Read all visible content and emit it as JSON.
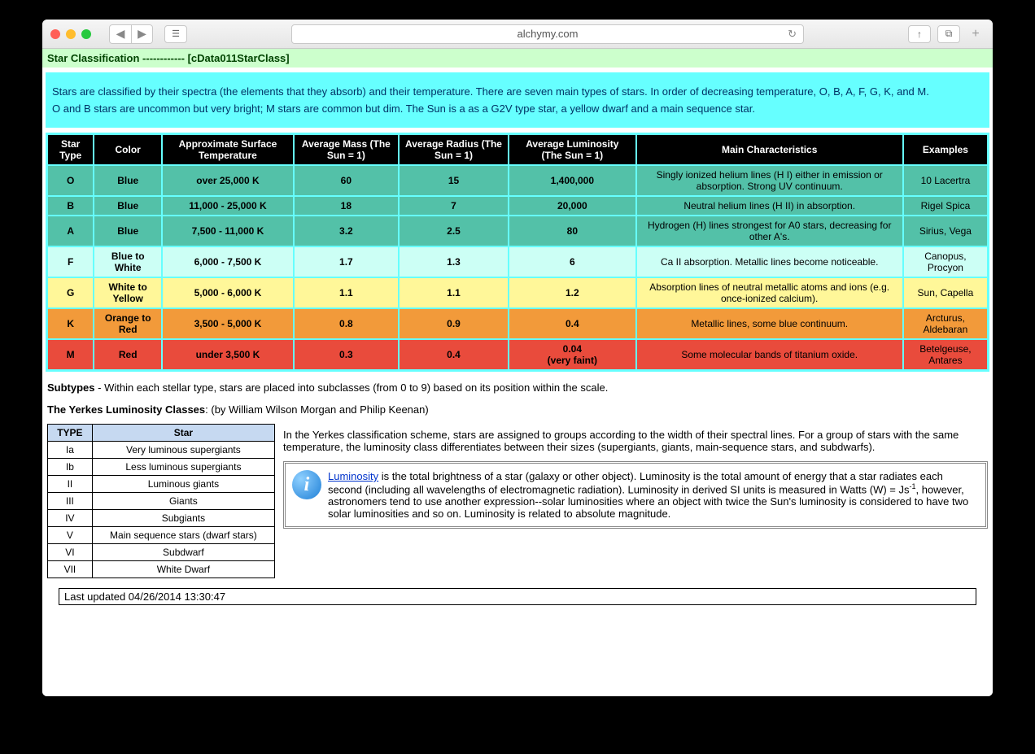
{
  "browser": {
    "url": "alchymy.com"
  },
  "header": {
    "title": "Star Classification ------------ [cData011StarClass]",
    "bg": "#ccffcc"
  },
  "intro": {
    "bg": "#66ffff",
    "p1": "Stars are classified by their spectra (the elements that they absorb) and their temperature. There are seven main types of stars. In order of decreasing temperature, O, B, A, F, G, K, and M.",
    "p2": "O and B stars are uncommon but very bright; M stars are common but dim. The Sun is a as a G2V type star, a yellow dwarf and a main sequence star."
  },
  "mainTable": {
    "borderColor": "#66ffff",
    "headerBg": "#000000",
    "columns": [
      "Star Type",
      "Color",
      "Approximate Surface Temperature",
      "Average Mass (The Sun = 1)",
      "Average Radius (The Sun = 1)",
      "Average Luminosity (The Sun = 1)",
      "Main Characteristics",
      "Examples"
    ],
    "rows": [
      {
        "bg": "#53c1a8",
        "cells": [
          "O",
          "Blue",
          "over 25,000 K",
          "60",
          "15",
          "1,400,000",
          "Singly ionized helium lines (H I) either in emission or absorption. Strong UV continuum.",
          "10 Lacertra"
        ]
      },
      {
        "bg": "#53c1a8",
        "cells": [
          "B",
          "Blue",
          "11,000 - 25,000 K",
          "18",
          "7",
          "20,000",
          "Neutral helium lines (H II) in absorption.",
          "Rigel Spica"
        ]
      },
      {
        "bg": "#53c1a8",
        "cells": [
          "A",
          "Blue",
          "7,500 - 11,000 K",
          "3.2",
          "2.5",
          "80",
          "Hydrogen (H) lines strongest for A0 stars, decreasing for other A's.",
          "Sirius, Vega"
        ]
      },
      {
        "bg": "#ccfff5",
        "cells": [
          "F",
          "Blue to White",
          "6,000 - 7,500 K",
          "1.7",
          "1.3",
          "6",
          "Ca II absorption. Metallic lines become noticeable.",
          "Canopus, Procyon"
        ]
      },
      {
        "bg": "#fff799",
        "cells": [
          "G",
          "White to Yellow",
          "5,000 - 6,000 K",
          "1.1",
          "1.1",
          "1.2",
          "Absorption lines of neutral metallic atoms and ions (e.g. once-ionized calcium).",
          "Sun, Capella"
        ]
      },
      {
        "bg": "#f29a3a",
        "cells": [
          "K",
          "Orange to Red",
          "3,500 - 5,000 K",
          "0.8",
          "0.9",
          "0.4",
          "Metallic lines, some blue continuum.",
          "Arcturus, Aldebaran"
        ]
      },
      {
        "bg": "#e94b3c",
        "cells": [
          "M",
          "Red",
          "under 3,500 K",
          "0.3",
          "0.4",
          "0.04\n(very faint)",
          "Some molecular bands of titanium oxide.",
          "Betelgeuse, Antares"
        ]
      }
    ]
  },
  "subtypes": {
    "label": "Subtypes",
    "text": " - Within each stellar type, stars are placed into subclasses (from 0 to 9) based on its position within the scale."
  },
  "yerkes": {
    "label": "The Yerkes Luminosity Classes",
    "credit": ": (by William Wilson Morgan and Philip Keenan)",
    "headerBg": "#c6d9f1",
    "table": {
      "columns": [
        "TYPE",
        "Star"
      ],
      "rows": [
        [
          "Ia",
          "Very luminous supergiants"
        ],
        [
          "Ib",
          "Less luminous supergiants"
        ],
        [
          "II",
          "Luminous giants"
        ],
        [
          "III",
          "Giants"
        ],
        [
          "IV",
          "Subgiants"
        ],
        [
          "V",
          "Main sequence stars (dwarf stars)"
        ],
        [
          "VI",
          "Subdwarf"
        ],
        [
          "VII",
          "White Dwarf"
        ]
      ]
    },
    "desc": "In the Yerkes classification scheme, stars are assigned to groups according to the width of their spectral lines. For a group of stars with the same temperature, the luminosity class differentiates between their sizes (supergiants, giants, main-sequence stars, and subdwarfs)."
  },
  "infoBox": {
    "link": "Luminosity",
    "text1": " is the total brightness of a star (galaxy or other object). Luminosity is the total amount of energy that a star radiates each second (including all wavelengths of electromagnetic radiation). Luminosity in derived SI units is measured in Watts (W) = Js",
    "sup": "-1",
    "text2": ", however, astronomers tend to use another expression--solar luminosities where an object with twice the Sun's luminosity is considered to have two solar luminosities and so on. Luminosity is related to absolute magnitude."
  },
  "lastUpdated": "Last updated 04/26/2014 13:30:47"
}
